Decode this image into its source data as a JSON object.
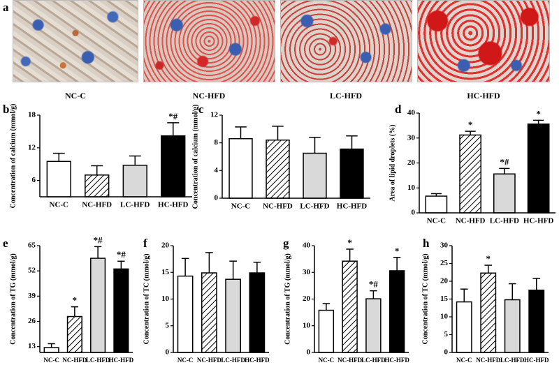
{
  "panel_a": {
    "label": "a",
    "captions": [
      "NC-C",
      "NC-HFD",
      "LC-HFD",
      "HC-HFD"
    ]
  },
  "chart_data": [
    {
      "type": "bar",
      "panel": "b",
      "y_label": "Concentration of calcium (mmol/g)",
      "categories": [
        "NC-C",
        "NC-HFD",
        "LC-HFD",
        "HC-HFD"
      ],
      "values": [
        9.5,
        7.0,
        8.8,
        14.2
      ],
      "errors": [
        1.5,
        1.7,
        1.7,
        2.4
      ],
      "annotations": [
        null,
        null,
        null,
        "*#"
      ],
      "ylim": [
        3,
        18
      ],
      "yticks": [
        6,
        12,
        18
      ],
      "fills": [
        "#ffffff",
        "#ffffff",
        "#d9d9d9",
        "#000000"
      ],
      "hatched": [
        false,
        true,
        false,
        false
      ]
    },
    {
      "type": "bar",
      "panel": "c",
      "y_label": "Concentration of calcium (mmol/g)",
      "categories": [
        "NC-C",
        "NC-HFD",
        "LC-HFD",
        "HC-HFD"
      ],
      "values": [
        8.6,
        8.4,
        6.5,
        7.1
      ],
      "errors": [
        1.7,
        2.0,
        2.3,
        1.9
      ],
      "annotations": [
        null,
        null,
        null,
        null
      ],
      "ylim": [
        0,
        12
      ],
      "yticks": [
        0,
        4,
        8,
        12
      ],
      "fills": [
        "#ffffff",
        "#ffffff",
        "#d9d9d9",
        "#000000"
      ],
      "hatched": [
        false,
        true,
        false,
        false
      ]
    },
    {
      "type": "bar",
      "panel": "d",
      "y_label": "Area of lipid droplets (%)",
      "categories": [
        "NC-C",
        "NC-HFD",
        "LC-HFD",
        "HC-HFD"
      ],
      "values": [
        6.7,
        31.2,
        15.6,
        35.6
      ],
      "errors": [
        1.0,
        1.5,
        2.2,
        1.5
      ],
      "annotations": [
        null,
        "*",
        "*#",
        "*"
      ],
      "ylim": [
        0,
        40
      ],
      "yticks": [
        0,
        10,
        20,
        30,
        40
      ],
      "fills": [
        "#ffffff",
        "#ffffff",
        "#d9d9d9",
        "#000000"
      ],
      "hatched": [
        false,
        true,
        false,
        false
      ]
    },
    {
      "type": "bar",
      "panel": "e",
      "y_label": "Concentration of TG (mmol/g)",
      "categories": [
        "NC-C",
        "NC-HFD",
        "LC-HFD",
        "HC-HFD"
      ],
      "values": [
        12.5,
        28.5,
        58.5,
        53.0
      ],
      "errors": [
        2.0,
        5.0,
        6.0,
        4.0
      ],
      "annotations": [
        null,
        "*",
        "*#",
        "*#"
      ],
      "ylim": [
        10,
        65
      ],
      "yticks": [
        13,
        26,
        39,
        52,
        65
      ],
      "fills": [
        "#ffffff",
        "#ffffff",
        "#d9d9d9",
        "#000000"
      ],
      "hatched": [
        false,
        true,
        false,
        false
      ]
    },
    {
      "type": "bar",
      "panel": "f",
      "y_label": "Concentration of TC (mmol/g)",
      "categories": [
        "NC-C",
        "NC-HFD",
        "LC-HFD",
        "HC-HFD"
      ],
      "values": [
        14.3,
        14.9,
        13.7,
        14.9
      ],
      "errors": [
        3.3,
        3.8,
        3.4,
        2.0
      ],
      "annotations": [
        null,
        null,
        null,
        null
      ],
      "ylim": [
        0,
        20
      ],
      "yticks": [
        0,
        5,
        10,
        15,
        20
      ],
      "fills": [
        "#ffffff",
        "#ffffff",
        "#d9d9d9",
        "#000000"
      ],
      "hatched": [
        false,
        true,
        false,
        false
      ]
    },
    {
      "type": "bar",
      "panel": "g",
      "y_label": "Concentration of TG (mmol/g)",
      "categories": [
        "NC-C",
        "NC-HFD",
        "LC-HFD",
        "HC-HFD"
      ],
      "values": [
        15.8,
        34.2,
        20.1,
        30.6
      ],
      "errors": [
        2.5,
        4.5,
        3.0,
        5.0
      ],
      "annotations": [
        null,
        "*",
        "*#",
        "*"
      ],
      "ylim": [
        0,
        40
      ],
      "yticks": [
        0,
        10,
        20,
        30,
        40
      ],
      "fills": [
        "#ffffff",
        "#ffffff",
        "#d9d9d9",
        "#000000"
      ],
      "hatched": [
        false,
        true,
        false,
        false
      ]
    },
    {
      "type": "bar",
      "panel": "h",
      "y_label": "Concentration of TC (mmol/g)",
      "categories": [
        "NC-C",
        "NC-HFD",
        "LC-HFD",
        "HC-HFD"
      ],
      "values": [
        14.2,
        22.3,
        14.8,
        17.5
      ],
      "errors": [
        3.6,
        2.2,
        4.5,
        3.3
      ],
      "annotations": [
        null,
        "*",
        null,
        null
      ],
      "ylim": [
        0,
        30
      ],
      "yticks": [
        0,
        5,
        10,
        15,
        20,
        25,
        30
      ],
      "fills": [
        "#ffffff",
        "#ffffff",
        "#d9d9d9",
        "#000000"
      ],
      "hatched": [
        false,
        true,
        false,
        false
      ]
    }
  ]
}
